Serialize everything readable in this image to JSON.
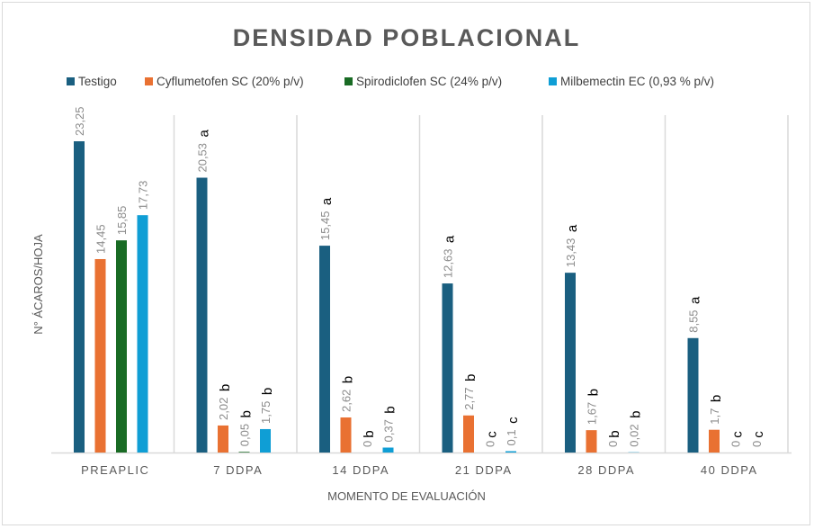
{
  "chart_data": {
    "type": "bar",
    "title": "DENSIDAD POBLACIONAL",
    "xlabel": "MOMENTO DE EVALUACIÓN",
    "ylabel": "N° ÁCAROS/HOJA",
    "ylim": [
      0,
      25
    ],
    "grid": "vertical separators between categories",
    "legend": "top",
    "categories": [
      "PREAPLIC",
      "7 DDPA",
      "14 DDPA",
      "21 DDPA",
      "28 DDPA",
      "40 DDPA"
    ],
    "series": [
      {
        "name": "Testigo",
        "color": "#1a5f80",
        "values": [
          23.25,
          20.53,
          15.45,
          12.63,
          13.43,
          8.55
        ],
        "labels": [
          "23,25",
          "20,53",
          "15,45",
          "12,63",
          "13,43",
          "8,55"
        ],
        "letters": [
          "",
          "a",
          "a",
          "a",
          "a",
          "a"
        ]
      },
      {
        "name": "Cyflumetofen SC (20% p/v)",
        "color": "#e97132",
        "values": [
          14.45,
          2.02,
          2.62,
          2.77,
          1.67,
          1.7
        ],
        "labels": [
          "14,45",
          "2,02",
          "2,62",
          "2,77",
          "1,67",
          "1,7"
        ],
        "letters": [
          "",
          "b",
          "b",
          "b",
          "b",
          "b"
        ]
      },
      {
        "name": "Spirodiclofen SC (24% p/v)",
        "color": "#196b24",
        "values": [
          15.85,
          0.05,
          0,
          0,
          0,
          0
        ],
        "labels": [
          "15,85",
          "0,05",
          "0",
          "0",
          "0",
          "0"
        ],
        "letters": [
          "",
          "b",
          "b",
          "c",
          "b",
          "c"
        ]
      },
      {
        "name": "Milbemectin EC (0,93 % p/v)",
        "color": "#0f9ed5",
        "values": [
          17.73,
          1.75,
          0.37,
          0.1,
          0.02,
          0
        ],
        "labels": [
          "17,73",
          "1,75",
          "0,37",
          "0,1",
          "0,02",
          "0"
        ],
        "letters": [
          "",
          "b",
          "b",
          "c",
          "b",
          "c"
        ]
      }
    ]
  }
}
